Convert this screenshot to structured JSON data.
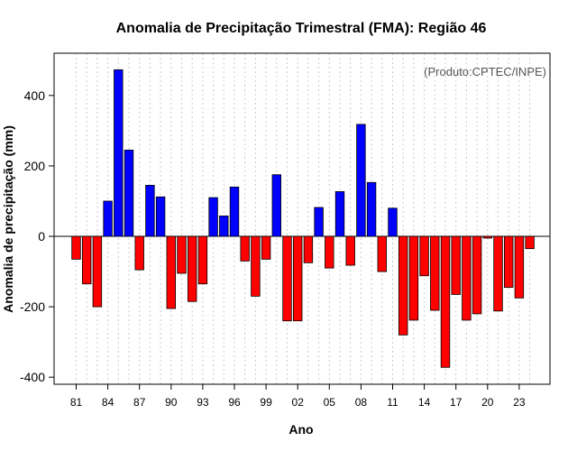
{
  "chart_data": {
    "type": "bar",
    "title": "Anomalia de Precipitação Trimestral (FMA): Região 46",
    "xlabel": "Ano",
    "ylabel": "Anomalia de precipitação (mm)",
    "annotation": "(Produto:CPTEC/INPE)",
    "ylim": [
      -420,
      520
    ],
    "yticks": [
      -400,
      -200,
      0,
      200,
      400
    ],
    "xtick_labels": [
      "81",
      "84",
      "87",
      "90",
      "93",
      "96",
      "99",
      "02",
      "05",
      "08",
      "11",
      "14",
      "17",
      "20",
      "23"
    ],
    "colors": {
      "positive": "#0000ff",
      "negative": "#ff0000",
      "edge": "#000000",
      "grid": "#cccccc"
    },
    "years": [
      1981,
      1982,
      1983,
      1984,
      1985,
      1986,
      1987,
      1988,
      1989,
      1990,
      1991,
      1992,
      1993,
      1994,
      1995,
      1996,
      1997,
      1998,
      1999,
      2000,
      2001,
      2002,
      2003,
      2004,
      2005,
      2006,
      2007,
      2008,
      2009,
      2010,
      2011,
      2012,
      2013,
      2014,
      2015,
      2016,
      2017,
      2018,
      2019,
      2020,
      2021,
      2022,
      2023,
      2024
    ],
    "values": [
      -65,
      -135,
      -200,
      100,
      473,
      245,
      -95,
      145,
      112,
      -205,
      -105,
      -185,
      -135,
      110,
      58,
      140,
      -70,
      -170,
      -65,
      175,
      -240,
      -240,
      -75,
      82,
      -90,
      127,
      -82,
      318,
      153,
      -100,
      80,
      -280,
      -238,
      -112,
      -210,
      -372,
      -165,
      -238,
      -220,
      -5,
      -212,
      -145,
      -175,
      -35
    ]
  }
}
